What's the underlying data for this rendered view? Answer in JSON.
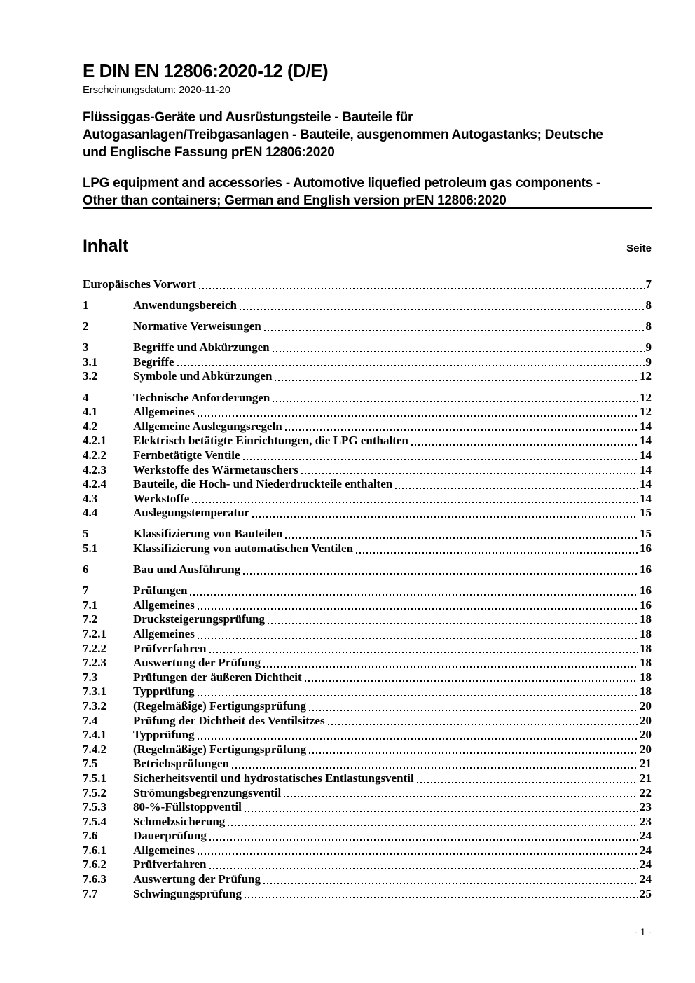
{
  "colors": {
    "text": "#000000",
    "background": "#ffffff"
  },
  "header": {
    "doc_number": "E DIN EN 12806:2020-12 (D/E)",
    "publication_date": "Erscheinungsdatum: 2020-11-20",
    "title_de_lines": [
      "Flüssiggas-Geräte und Ausrüstungsteile - Bauteile für",
      "Autogasanlagen/Treibgasanlagen - Bauteile, ausgenommen Autogastanks; Deutsche",
      "und Englische Fassung prEN 12806:2020"
    ],
    "title_en_lines": [
      "LPG equipment and accessories - Automotive liquefied petroleum gas components -",
      "Other than containers; German and English version prEN 12806:2020"
    ]
  },
  "toc": {
    "heading": "Inhalt",
    "page_column_label": "Seite",
    "groups": [
      {
        "entries": [
          {
            "num": "",
            "title": "Europäisches Vorwort",
            "page": "7"
          }
        ]
      },
      {
        "entries": [
          {
            "num": "1",
            "title": "Anwendungsbereich",
            "page": "8"
          }
        ]
      },
      {
        "entries": [
          {
            "num": "2",
            "title": "Normative Verweisungen",
            "page": "8"
          }
        ]
      },
      {
        "entries": [
          {
            "num": "3",
            "title": "Begriffe und Abkürzungen",
            "page": "9"
          },
          {
            "num": "3.1",
            "title": "Begriffe",
            "page": "9"
          },
          {
            "num": "3.2",
            "title": "Symbole und Abkürzungen",
            "page": "12"
          }
        ]
      },
      {
        "entries": [
          {
            "num": "4",
            "title": "Technische Anforderungen",
            "page": "12"
          },
          {
            "num": "4.1",
            "title": "Allgemeines",
            "page": "12"
          },
          {
            "num": "4.2",
            "title": "Allgemeine Auslegungsregeln",
            "page": "14"
          },
          {
            "num": "4.2.1",
            "title": "Elektrisch betätigte Einrichtungen, die LPG enthalten",
            "page": "14"
          },
          {
            "num": "4.2.2",
            "title": "Fernbetätigte Ventile",
            "page": "14"
          },
          {
            "num": "4.2.3",
            "title": "Werkstoffe des Wärmetauschers",
            "page": "14"
          },
          {
            "num": "4.2.4",
            "title": "Bauteile, die Hoch- und Niederdruckteile enthalten",
            "page": "14"
          },
          {
            "num": "4.3",
            "title": "Werkstoffe",
            "page": "14"
          },
          {
            "num": "4.4",
            "title": "Auslegungstemperatur",
            "page": "15"
          }
        ]
      },
      {
        "entries": [
          {
            "num": "5",
            "title": "Klassifizierung von Bauteilen",
            "page": "15"
          },
          {
            "num": "5.1",
            "title": "Klassifizierung von automatischen Ventilen",
            "page": "16"
          }
        ]
      },
      {
        "entries": [
          {
            "num": "6",
            "title": "Bau und Ausführung",
            "page": "16"
          }
        ]
      },
      {
        "entries": [
          {
            "num": "7",
            "title": "Prüfungen",
            "page": "16"
          },
          {
            "num": "7.1",
            "title": "Allgemeines",
            "page": "16"
          },
          {
            "num": "7.2",
            "title": "Drucksteigerungsprüfung",
            "page": "18"
          },
          {
            "num": "7.2.1",
            "title": "Allgemeines",
            "page": "18"
          },
          {
            "num": "7.2.2",
            "title": "Prüfverfahren",
            "page": "18"
          },
          {
            "num": "7.2.3",
            "title": "Auswertung der Prüfung",
            "page": "18"
          },
          {
            "num": "7.3",
            "title": "Prüfungen der äußeren Dichtheit",
            "page": "18"
          },
          {
            "num": "7.3.1",
            "title": "Typprüfung",
            "page": "18"
          },
          {
            "num": "7.3.2",
            "title": "(Regelmäßige) Fertigungsprüfung",
            "page": "20"
          },
          {
            "num": "7.4",
            "title": "Prüfung der Dichtheit des Ventilsitzes",
            "page": "20"
          },
          {
            "num": "7.4.1",
            "title": "Typprüfung",
            "page": "20"
          },
          {
            "num": "7.4.2",
            "title": "(Regelmäßige) Fertigungsprüfung",
            "page": "20"
          },
          {
            "num": "7.5",
            "title": "Betriebsprüfungen",
            "page": "21"
          },
          {
            "num": "7.5.1",
            "title": "Sicherheitsventil und hydrostatisches Entlastungsventil",
            "page": "21"
          },
          {
            "num": "7.5.2",
            "title": "Strömungsbegrenzungsventil",
            "page": "22"
          },
          {
            "num": "7.5.3",
            "title": "80-%-Füllstoppventil",
            "page": "23"
          },
          {
            "num": "7.5.4",
            "title": "Schmelzsicherung",
            "page": "23"
          },
          {
            "num": "7.6",
            "title": "Dauerprüfung",
            "page": "24"
          },
          {
            "num": "7.6.1",
            "title": "Allgemeines",
            "page": "24"
          },
          {
            "num": "7.6.2",
            "title": "Prüfverfahren",
            "page": "24"
          },
          {
            "num": "7.6.3",
            "title": "Auswertung der Prüfung",
            "page": "24"
          },
          {
            "num": "7.7",
            "title": "Schwingungsprüfung",
            "page": "25"
          }
        ]
      }
    ]
  },
  "footer": {
    "page_number": "- 1 -"
  }
}
